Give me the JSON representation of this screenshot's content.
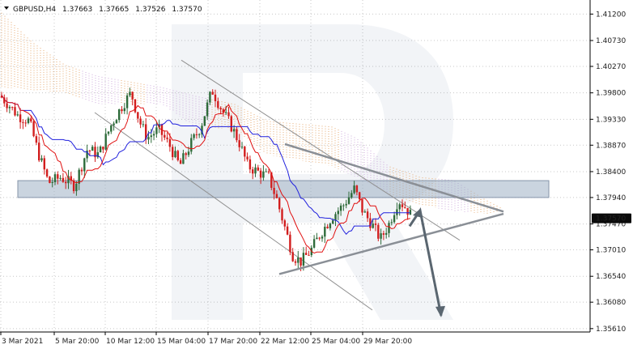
{
  "chart_data": {
    "type": "candlestick",
    "symbol": "GBPUSD,H4",
    "ohlc": [
      "1.37663",
      "1.37665",
      "1.37526",
      "1.37570"
    ],
    "current_price": "1.37570",
    "ylim": [
      1.3555,
      1.4145
    ],
    "y_ticks": [
      "1.41200",
      "1.40730",
      "1.40270",
      "1.39800",
      "1.39330",
      "1.38870",
      "1.38400",
      "1.37940",
      "1.37470",
      "1.37010",
      "1.36540",
      "1.36080",
      "1.35610"
    ],
    "x_ticks": [
      "3 Mar 2021",
      "5 Mar 20:00",
      "10 Mar 12:00",
      "15 Mar 04:00",
      "17 Mar 20:00",
      "22 Mar 12:00",
      "25 Mar 04:00",
      "29 Mar 20:00"
    ],
    "grid": true,
    "colors": {
      "bull": "#2e6b3a",
      "bear": "#d21e1e",
      "kijun": "#2020dd",
      "tenkan": "#e01010",
      "cloud_a": "#e4a060",
      "cloud_b": "#c8a0d8",
      "zone": "#9fb0c4",
      "trendlines": "#909090",
      "projection": "#5a6670",
      "price_label_bg": "#0b0b0b",
      "price_label_text": "#ffffff"
    },
    "horizontal_zone": [
      1.3794,
      1.3824
    ],
    "channel_lines": [
      {
        "from": [
          "3 Mar 2021 +50",
          1.4038
        ],
        "to": [
          "25 Mar +42",
          1.3757
        ]
      },
      {
        "from": [
          "10 Mar 12:00 -10",
          1.3945
        ],
        "to": [
          "29 Mar 20:00 -5",
          1.3594
        ]
      }
    ],
    "triangle_lines": [
      {
        "upper_from": 1.3889,
        "upper_to": 1.3769
      },
      {
        "lower_from": 1.3658,
        "lower_to": 1.3765
      }
    ],
    "forecast": {
      "from": 1.3743,
      "peak": 1.3771,
      "to": 1.3584
    }
  }
}
